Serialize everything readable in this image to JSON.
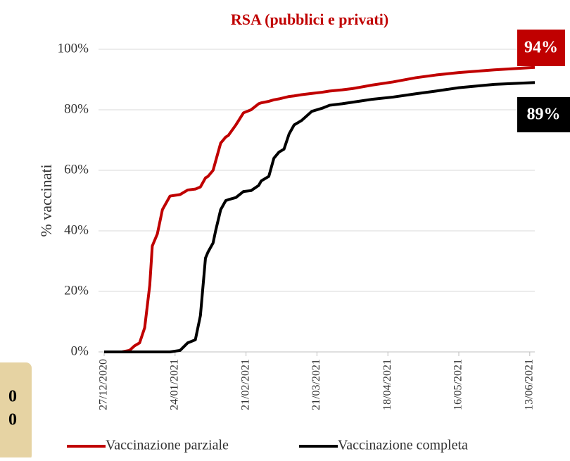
{
  "chart_data": {
    "type": "line",
    "title": "RSA (pubblici e privati)",
    "ylabel": "% vaccinati",
    "x": [
      "27/12/2020",
      "03/01/2021",
      "06/01/2021",
      "08/01/2021",
      "10/01/2021",
      "12/01/2021",
      "14/01/2021",
      "15/01/2021",
      "17/01/2021",
      "19/01/2021",
      "22/01/2021",
      "26/01/2021",
      "29/01/2021",
      "01/02/2021",
      "03/02/2021",
      "05/02/2021",
      "06/02/2021",
      "08/02/2021",
      "09/02/2021",
      "11/02/2021",
      "13/02/2021",
      "14/02/2021",
      "17/02/2021",
      "20/02/2021",
      "23/02/2021",
      "26/02/2021",
      "27/02/2021",
      "02/03/2021",
      "04/03/2021",
      "06/03/2021",
      "08/03/2021",
      "10/03/2021",
      "12/03/2021",
      "15/03/2021",
      "19/03/2021",
      "23/03/2021",
      "26/03/2021",
      "31/03/2021",
      "04/04/2021",
      "12/04/2021",
      "20/04/2021",
      "29/04/2021",
      "07/05/2021",
      "16/05/2021",
      "30/05/2021",
      "15/06/2021"
    ],
    "series": [
      {
        "name": "Vaccinazione parziale",
        "color": "#c00000",
        "end_label": "94%",
        "values": [
          0,
          0,
          0.5,
          2,
          3,
          8,
          22,
          35,
          39,
          47,
          51.5,
          52,
          53.5,
          53.8,
          54.5,
          57.5,
          58,
          60,
          63,
          69,
          71,
          71.5,
          75,
          79,
          80,
          82,
          82.3,
          82.8,
          83.3,
          83.6,
          84,
          84.4,
          84.6,
          85,
          85.4,
          85.8,
          86.2,
          86.6,
          87,
          88.2,
          89.2,
          90.6,
          91.5,
          92.3,
          93.2,
          94
        ]
      },
      {
        "name": "Vaccinazione completa",
        "color": "#000000",
        "end_label": "89%",
        "values": [
          0,
          0,
          0,
          0,
          0,
          0,
          0,
          0,
          0,
          0,
          0,
          0.5,
          3,
          4,
          12,
          31,
          33,
          36,
          40,
          47,
          50,
          50.3,
          51,
          53,
          53.3,
          55,
          56.5,
          58,
          64,
          66,
          67,
          72,
          75,
          76.5,
          79.5,
          80.5,
          81.5,
          82,
          82.5,
          83.5,
          84.2,
          85.3,
          86.2,
          87.3,
          88.4,
          89
        ]
      }
    ],
    "xlim": [
      "27/12/2020",
      "15/06/2021"
    ],
    "xticks": [
      "27/12/2020",
      "24/01/2021",
      "21/02/2021",
      "21/03/2021",
      "18/04/2021",
      "16/05/2021",
      "13/06/2021"
    ],
    "ylim": [
      0,
      100
    ],
    "yticks": [
      {
        "value": 0,
        "label": "0%"
      },
      {
        "value": 20,
        "label": "20%"
      },
      {
        "value": 40,
        "label": "40%"
      },
      {
        "value": 60,
        "label": "60%"
      },
      {
        "value": 80,
        "label": "80%"
      },
      {
        "value": 100,
        "label": "100%"
      }
    ],
    "grid": true,
    "legend": "bottom",
    "side_panel": [
      "0",
      "0"
    ]
  }
}
